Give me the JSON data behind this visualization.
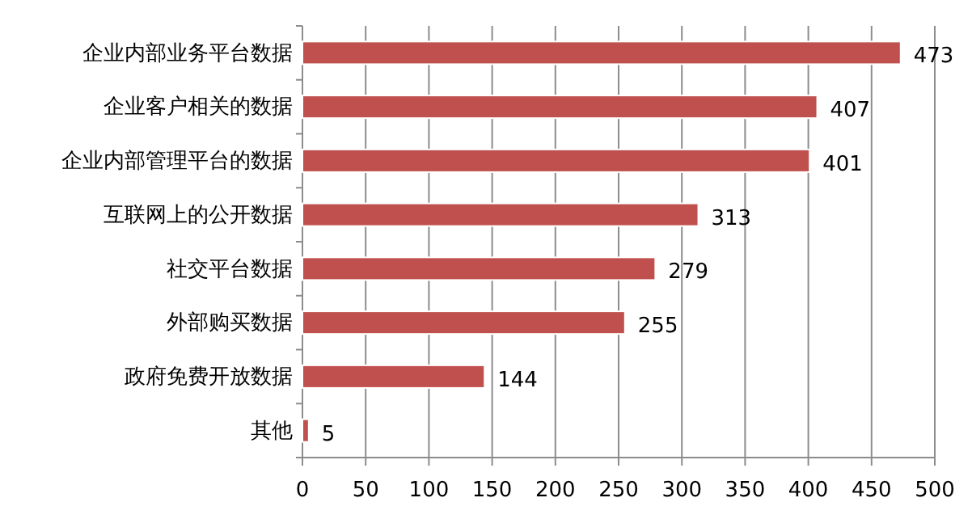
{
  "chart_data": {
    "type": "bar",
    "orientation": "horizontal",
    "categories": [
      "企业内部业务平台数据",
      "企业客户相关的数据",
      "企业内部管理平台的数据",
      "互联网上的公开数据",
      "社交平台数据",
      "外部购买数据",
      "政府免费开放数据",
      "其他"
    ],
    "values": [
      473,
      407,
      401,
      313,
      279,
      255,
      144,
      5
    ],
    "color": "#c0504d",
    "xlim": [
      0,
      500
    ],
    "xticks": [
      0,
      50,
      100,
      150,
      200,
      250,
      300,
      350,
      400,
      450,
      500
    ],
    "grid": "x",
    "data_labels": true
  }
}
